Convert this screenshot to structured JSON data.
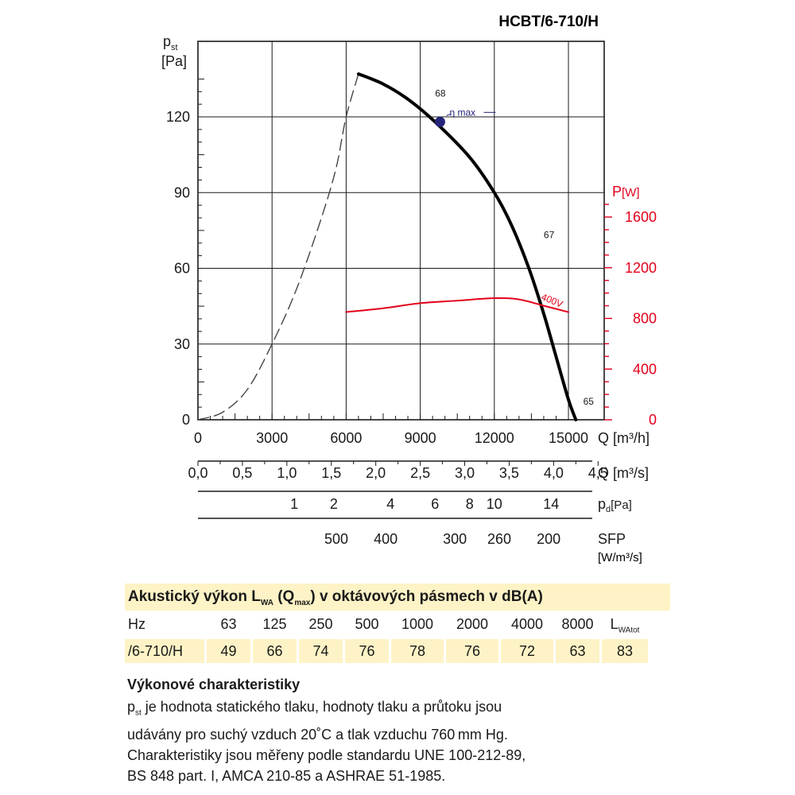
{
  "model": "HCBT/6-710/H",
  "chart_data": {
    "type": "line",
    "title": "HCBT/6-710/H",
    "left_axis": {
      "label": "p",
      "label_sub": "st",
      "unit": "[Pa]",
      "ticks": [
        0,
        30,
        60,
        90,
        120
      ],
      "ylim": [
        0,
        120
      ]
    },
    "right_axis": {
      "label": "P",
      "unit": "[W]",
      "ticks": [
        0,
        400,
        800,
        1200,
        1600
      ],
      "ylim": [
        0,
        1600
      ],
      "color": "#e3001b"
    },
    "x_axis": {
      "label": "Q [m³/h]",
      "ticks": [
        0,
        3000,
        6000,
        9000,
        12000,
        15000
      ],
      "xlim": [
        0,
        15000
      ]
    },
    "secondary_axes": [
      {
        "label": "Q [m³/s]",
        "ticks": [
          [
            "0,0",
            0
          ],
          [
            "0,5",
            1800
          ],
          [
            "1,0",
            3600
          ],
          [
            "1,5",
            5400
          ],
          [
            "2,0",
            7200
          ],
          [
            "2,5",
            9000
          ],
          [
            "3,0",
            10800
          ],
          [
            "3,5",
            12600
          ],
          [
            "4,0",
            14400
          ],
          [
            "4,5",
            16200
          ]
        ]
      },
      {
        "label": "p",
        "label_sub": "d",
        "unit": "[Pa]",
        "ticks": [
          [
            "1",
            3900
          ],
          [
            "2",
            5500
          ],
          [
            "4",
            7800
          ],
          [
            "6",
            9600
          ],
          [
            "8",
            11000
          ],
          [
            "10",
            12000
          ],
          [
            "14",
            14300
          ]
        ]
      },
      {
        "label": "SFP",
        "unit": "[W/m³/s]",
        "ticks": [
          [
            "500",
            5600
          ],
          [
            "400",
            7600
          ],
          [
            "300",
            10400
          ],
          [
            "260",
            12200
          ],
          [
            "200",
            14200
          ]
        ]
      }
    ],
    "series": [
      {
        "name": "",
        "axis": "left",
        "style": "dashed",
        "points": [
          [
            0,
            0
          ],
          [
            1000,
            3
          ],
          [
            2000,
            12
          ],
          [
            3000,
            30
          ],
          [
            4000,
            52
          ],
          [
            5000,
            80
          ],
          [
            5600,
            100
          ],
          [
            6000,
            120
          ],
          [
            6500,
            137
          ]
        ]
      },
      {
        "name": "",
        "axis": "left",
        "style": "solid",
        "points": [
          [
            6500,
            137
          ],
          [
            7500,
            133
          ],
          [
            8500,
            127
          ],
          [
            9600,
            118
          ],
          [
            11000,
            104
          ],
          [
            12000,
            90
          ],
          [
            12700,
            77
          ],
          [
            13400,
            60
          ],
          [
            14000,
            42
          ],
          [
            14500,
            25
          ],
          [
            15000,
            8
          ],
          [
            15300,
            0
          ]
        ]
      },
      {
        "name": "400V",
        "axis": "right",
        "style": "solid",
        "color": "#e3001b",
        "points": [
          [
            6000,
            850
          ],
          [
            7500,
            880
          ],
          [
            9000,
            920
          ],
          [
            10500,
            940
          ],
          [
            12000,
            960
          ],
          [
            13000,
            950
          ],
          [
            14000,
            900
          ],
          [
            15000,
            850
          ]
        ]
      }
    ],
    "eta_max": {
      "label": "η max",
      "x": 9800,
      "y": 118
    },
    "annotations": [
      {
        "text": "68",
        "x": 9600,
        "y": 128
      },
      {
        "text": "67",
        "x": 14000,
        "y": 72
      },
      {
        "text": "65",
        "x": 15600,
        "y": 6
      }
    ],
    "grid": true
  },
  "acoustic": {
    "title_pre": "Akustický výkon L",
    "title_sub1": "WA",
    "title_mid": " (Q",
    "title_sub2": "max",
    "title_post": ") v oktávových pásmech v dB(A)",
    "hz_label": "Hz",
    "frequencies": [
      "63",
      "125",
      "250",
      "500",
      "1000",
      "2000",
      "4000",
      "8000"
    ],
    "total_label": "L",
    "total_sub": "WAtot",
    "row_label": "/6-710/H",
    "values": [
      "49",
      "66",
      "74",
      "76",
      "78",
      "76",
      "72",
      "63"
    ],
    "total_value": "83"
  },
  "notes": {
    "heading": "Výkonové charakteristiky",
    "pst_p": "p",
    "pst_sub": "st",
    "line1": " je hodnota statického tlaku, hodnoty tlaku a průtoku jsou",
    "line2": "udávány pro suchý vzduch 20˚C a tlak vzduchu 760 mm Hg.",
    "line3": "Charakteristiky jsou měřeny podle standardu UNE 100-212-89,",
    "line4": "BS 848 part. I, AMCA 210-85 a ASHRAE 51-1985."
  }
}
